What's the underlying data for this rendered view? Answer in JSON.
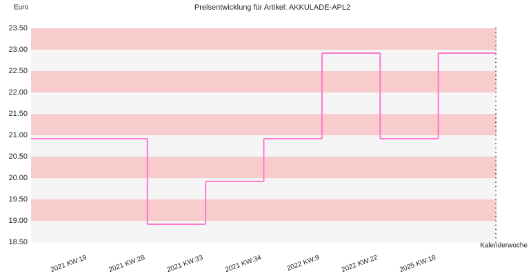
{
  "chart_data": {
    "type": "step",
    "title": "Preisentwicklung für Artikel: AKKULADE-APL2",
    "y_label": "Euro",
    "x_label": "Kalenderwoche",
    "categories": [
      null,
      "2021 KW:19",
      "2021 KW:28",
      "2021 KW:33",
      "2021 KW:34",
      "2022 KW:9",
      "2022 KW:22",
      "2025 KW:18"
    ],
    "values": [
      20.92,
      20.92,
      18.92,
      19.92,
      20.92,
      22.92,
      20.92,
      22.92
    ],
    "color": "#ff77cc",
    "band_colors": [
      "#f5f5f5",
      "#f8cccc"
    ],
    "ylim": [
      18.5,
      23.5
    ],
    "yticks": [
      {
        "value": 18.5,
        "label": "18.50"
      },
      {
        "value": 19,
        "label": "19.00"
      },
      {
        "value": 19.5,
        "label": "19.50"
      },
      {
        "value": 20,
        "label": "20.00"
      },
      {
        "value": 20.5,
        "label": "20.50"
      },
      {
        "value": 21,
        "label": "21.00"
      },
      {
        "value": 21.5,
        "label": "21.50"
      },
      {
        "value": 22,
        "label": "22.00"
      },
      {
        "value": 22.5,
        "label": "22.50"
      },
      {
        "value": 23,
        "label": "23.00"
      },
      {
        "value": 23.5,
        "label": "23.50"
      }
    ]
  }
}
